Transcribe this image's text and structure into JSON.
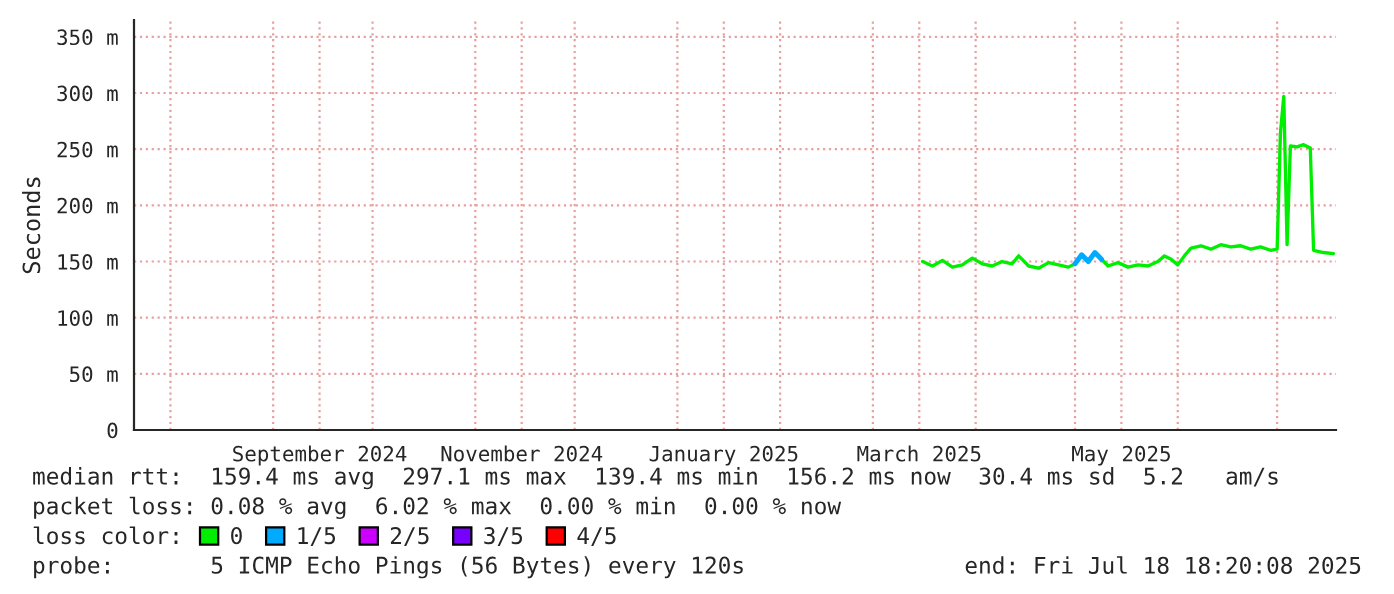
{
  "chart_data": {
    "type": "line",
    "ylabel": "Seconds",
    "legend_title": "loss color:",
    "x": [
      "2025-03-16",
      "2025-03-19",
      "2025-03-22",
      "2025-03-25",
      "2025-03-28",
      "2025-03-31",
      "2025-04-03",
      "2025-04-06",
      "2025-04-09",
      "2025-04-12",
      "2025-04-14",
      "2025-04-17",
      "2025-04-20",
      "2025-04-23",
      "2025-04-26",
      "2025-04-29",
      "2025-05-01",
      "2025-05-03",
      "2025-05-05",
      "2025-05-07",
      "2025-05-09",
      "2025-05-11",
      "2025-05-14",
      "2025-05-17",
      "2025-05-20",
      "2025-05-23",
      "2025-05-26",
      "2025-05-28",
      "2025-05-30",
      "2025-06-01",
      "2025-06-03",
      "2025-06-05",
      "2025-06-08",
      "2025-06-11",
      "2025-06-14",
      "2025-06-17",
      "2025-06-20",
      "2025-06-23",
      "2025-06-26",
      "2025-06-29",
      "2025-07-01",
      "2025-07-02",
      "2025-07-03",
      "2025-07-04",
      "2025-07-05",
      "2025-07-07",
      "2025-07-09",
      "2025-07-11",
      "2025-07-12",
      "2025-07-15",
      "2025-07-18"
    ],
    "series": [
      {
        "name": "0",
        "color": "#00ee00",
        "values": [
          150,
          146,
          151,
          145,
          147,
          153,
          148,
          146,
          150,
          148,
          155,
          146,
          144,
          149,
          147,
          145,
          148,
          null,
          null,
          null,
          152,
          146,
          149,
          145,
          147,
          146,
          150,
          155,
          152,
          147,
          155,
          162,
          164,
          161,
          165,
          163,
          164,
          161,
          163,
          160,
          161,
          265,
          297,
          165,
          253,
          252,
          254,
          251,
          160,
          158,
          157
        ]
      },
      {
        "name": "1/5",
        "color": "#00aaff",
        "x": [
          "2025-05-01",
          "2025-05-03",
          "2025-05-05",
          "2025-05-07",
          "2025-05-09"
        ],
        "values": [
          148,
          156,
          150,
          158,
          152
        ]
      },
      {
        "name": "2/5",
        "color": "#cc00ff",
        "values": [
          null,
          null,
          null,
          null,
          null,
          null,
          null,
          null,
          null,
          null,
          null,
          null,
          null,
          null,
          null,
          null,
          null,
          null,
          null,
          null,
          null,
          null,
          null,
          null,
          null,
          null,
          null,
          null,
          null,
          null,
          null,
          null,
          null,
          null,
          null,
          null,
          null,
          null,
          null,
          null,
          null,
          null,
          null,
          null,
          null,
          null,
          null,
          null,
          null,
          null,
          null
        ]
      },
      {
        "name": "3/5",
        "color": "#7700ff",
        "values": [
          null,
          null,
          null,
          null,
          null,
          null,
          null,
          null,
          null,
          null,
          null,
          null,
          null,
          null,
          null,
          null,
          null,
          null,
          null,
          null,
          null,
          null,
          null,
          null,
          null,
          null,
          null,
          null,
          null,
          null,
          null,
          null,
          null,
          null,
          null,
          null,
          null,
          null,
          null,
          null,
          null,
          null,
          null,
          null,
          null,
          null,
          null,
          null,
          null,
          null,
          null
        ]
      },
      {
        "name": "4/5",
        "color": "#ff0000",
        "values": [
          null,
          null,
          null,
          null,
          null,
          null,
          null,
          null,
          null,
          null,
          null,
          null,
          null,
          null,
          null,
          null,
          null,
          null,
          null,
          null,
          null,
          null,
          null,
          null,
          null,
          null,
          null,
          null,
          null,
          null,
          null,
          null,
          null,
          null,
          null,
          null,
          null,
          null,
          null,
          null,
          null,
          null,
          null,
          null,
          null,
          null,
          null,
          null,
          null,
          null,
          null
        ]
      }
    ],
    "xlim": [
      "2024-07-21",
      "2025-07-18T18:20"
    ],
    "xticks": [
      {
        "value": "2024-08-01",
        "label": null
      },
      {
        "value": "2024-09-01",
        "label": null
      },
      {
        "value": "2024-09-15",
        "label": "September 2024"
      },
      {
        "value": "2024-10-01",
        "label": null
      },
      {
        "value": "2024-11-01",
        "label": null
      },
      {
        "value": "2024-11-15",
        "label": "November 2024"
      },
      {
        "value": "2024-12-01",
        "label": null
      },
      {
        "value": "2025-01-01",
        "label": null
      },
      {
        "value": "2025-01-15",
        "label": "January 2025"
      },
      {
        "value": "2025-02-01",
        "label": null
      },
      {
        "value": "2025-03-01",
        "label": null
      },
      {
        "value": "2025-03-15",
        "label": "March 2025"
      },
      {
        "value": "2025-04-01",
        "label": null
      },
      {
        "value": "2025-05-01",
        "label": null
      },
      {
        "value": "2025-05-15",
        "label": "May 2025"
      },
      {
        "value": "2025-06-01",
        "label": null
      },
      {
        "value": "2025-07-01",
        "label": null
      }
    ],
    "ylim": [
      0,
      365
    ],
    "yticks": [
      0,
      {
        "value": 50,
        "label": "50 m"
      },
      {
        "value": 100,
        "label": "100 m"
      },
      {
        "value": 150,
        "label": "150 m"
      },
      {
        "value": 200,
        "label": "200 m"
      },
      {
        "value": 250,
        "label": "250 m"
      },
      {
        "value": 300,
        "label": "300 m"
      },
      {
        "value": 350,
        "label": "350 m"
      }
    ],
    "grid": true,
    "legend": "bottom",
    "line_style": "solid",
    "marker": "none",
    "annotations": [
      "median rtt:  159.4 ms avg  297.1 ms max  139.4 ms min  156.2 ms now  30.4 ms sd  5.2   am/s",
      "packet loss: 0.08 % avg  6.02 % max  0.00 % min  0.00 % now",
      "probe:       5 ICMP Echo Pings (56 Bytes) every 120s",
      "end: Fri Jul 18 18:20:08 2025"
    ]
  }
}
